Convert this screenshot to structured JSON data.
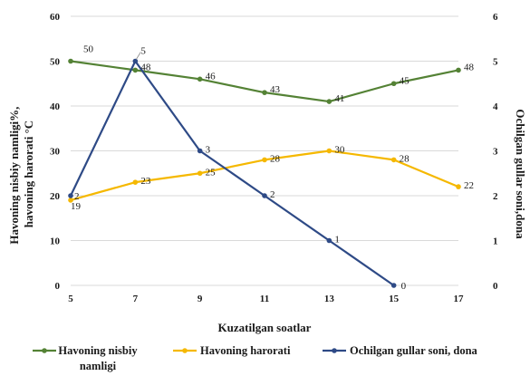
{
  "chart_data": {
    "type": "line",
    "xlabel": "Kuzatilgan soatlar",
    "ylabel_left": [
      "Havoning nisbiy namligi%,",
      "havoning harorati °C"
    ],
    "ylabel_right": "Ochilgan gullar soni,dona",
    "x": [
      5,
      7,
      9,
      11,
      13,
      15,
      17
    ],
    "x_ticks": [
      "5",
      "7",
      "9",
      "11",
      "13",
      "15",
      "17"
    ],
    "y_left_ticks": [
      "0",
      "10",
      "20",
      "30",
      "40",
      "50",
      "60"
    ],
    "y_right_ticks": [
      "0",
      "1",
      "2",
      "3",
      "4",
      "5",
      "6"
    ],
    "ylim_left": [
      0,
      60
    ],
    "ylim_right": [
      0,
      6
    ],
    "grid": "horizontal",
    "legend_position": "bottom",
    "series": [
      {
        "name": "Havoning nisbiy namligi",
        "legend_lines": [
          "Havoning nisbiy",
          "namligi"
        ],
        "axis": "left",
        "color": "#548235",
        "x": [
          5,
          7,
          9,
          11,
          13,
          15,
          17
        ],
        "values": [
          50,
          48,
          46,
          43,
          41,
          45,
          48
        ],
        "labels": [
          "50",
          "48",
          "46",
          "43",
          "41",
          "45",
          "48"
        ]
      },
      {
        "name": "Havoning harorati",
        "legend_lines": [
          "Havoning harorati"
        ],
        "axis": "left",
        "color": "#f5b800",
        "x": [
          5,
          7,
          9,
          11,
          13,
          15,
          17
        ],
        "values": [
          19,
          23,
          25,
          28,
          30,
          28,
          22
        ],
        "labels": [
          "19",
          "23",
          "25",
          "28",
          "30",
          "28",
          "22"
        ]
      },
      {
        "name": "Ochilgan gullar soni, dona",
        "legend_lines": [
          "Ochilgan gullar soni, dona"
        ],
        "axis": "right",
        "color": "#2e4a86",
        "x": [
          5,
          7,
          9,
          11,
          13,
          15
        ],
        "values": [
          2,
          5,
          3,
          2,
          1,
          0
        ],
        "labels": [
          "2",
          "5",
          "3",
          "2",
          "1",
          "0"
        ]
      }
    ]
  }
}
